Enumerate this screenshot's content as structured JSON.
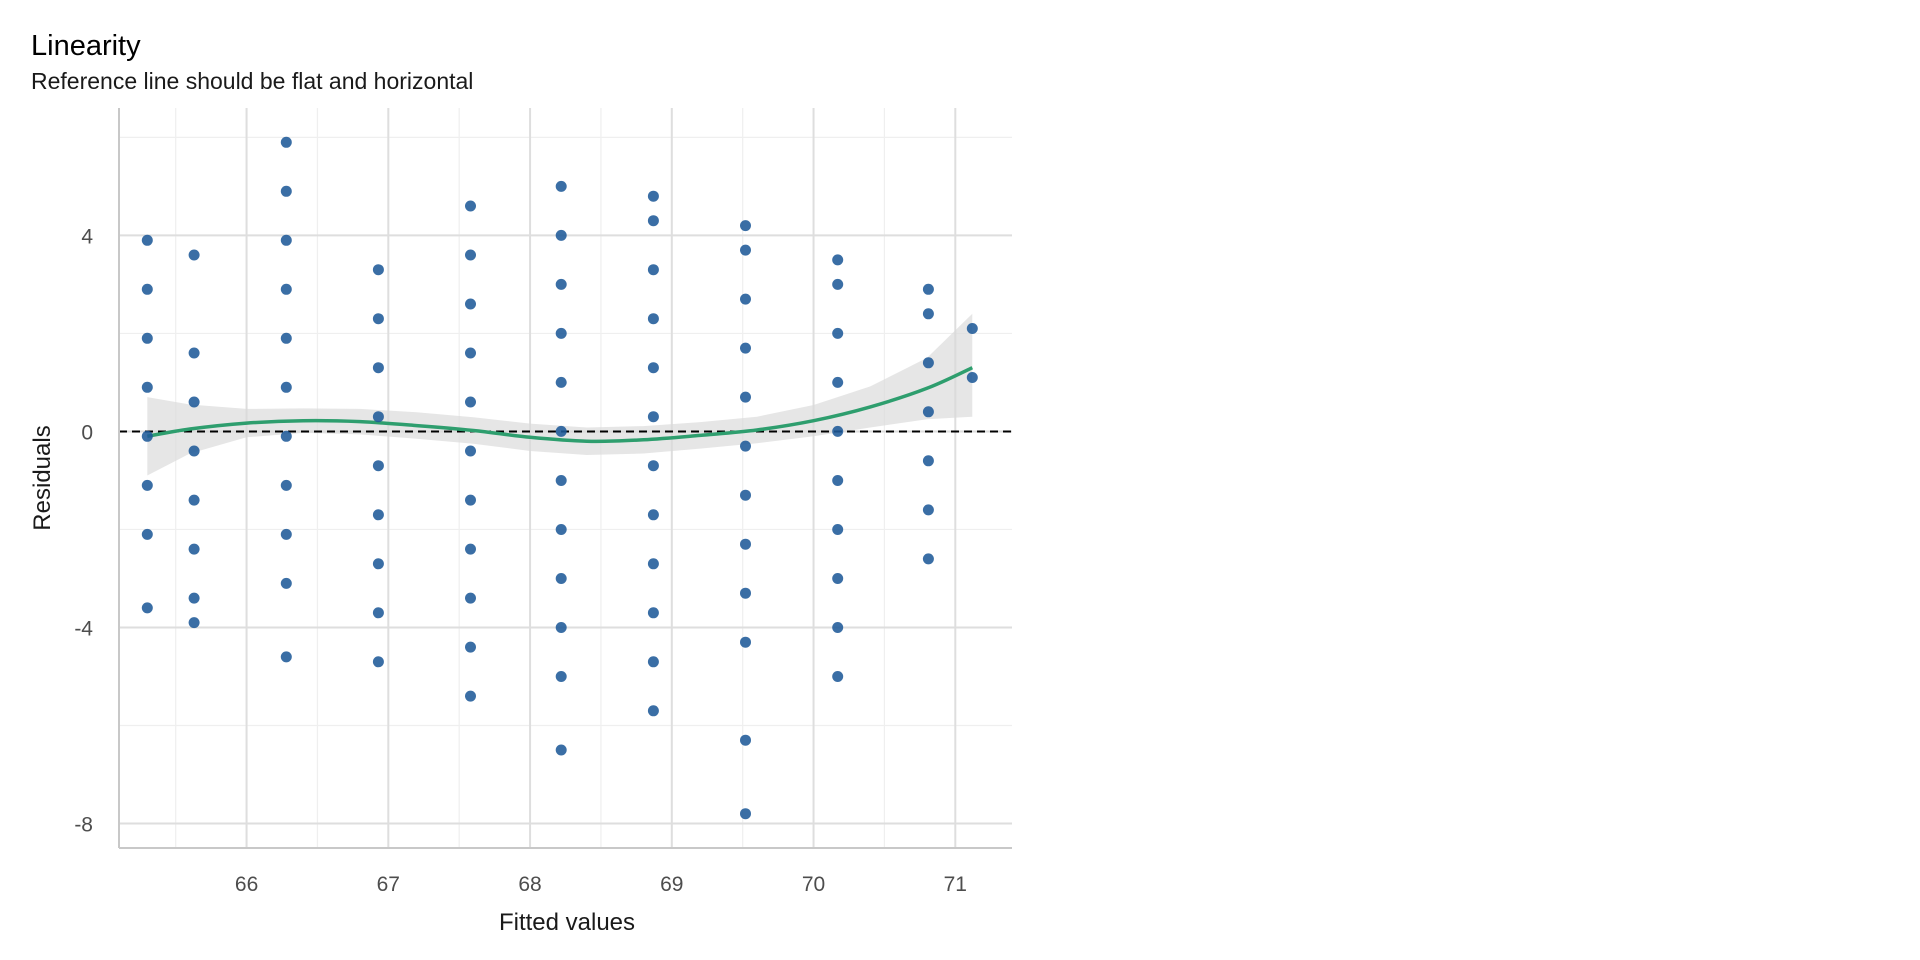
{
  "chart_data": {
    "type": "scatter",
    "title": "Linearity",
    "subtitle": "Reference line should be flat and horizontal",
    "xlabel": "Fitted values",
    "ylabel": "Residuals",
    "xlim": [
      65.1,
      71.4
    ],
    "ylim": [
      -8.5,
      6.6
    ],
    "x_ticks": [
      66,
      67,
      68,
      69,
      70,
      71
    ],
    "y_ticks": [
      -8,
      -4,
      0,
      4
    ],
    "grid": true,
    "reference_line_y": 0,
    "colors": {
      "points": "#1f5a99",
      "smooth": "#2e9e6e",
      "band": "#d9d9d9",
      "reference": "#000000",
      "grid_major": "#dedede",
      "grid_minor": "#efefef"
    },
    "groups": [
      {
        "x": 65.3,
        "y": [
          3.9,
          2.9,
          1.9,
          0.9,
          -0.1,
          -1.1,
          -2.1,
          -3.6
        ]
      },
      {
        "x": 65.63,
        "y": [
          3.6,
          1.6,
          0.6,
          -0.4,
          -1.4,
          -2.4,
          -3.4,
          -3.9
        ]
      },
      {
        "x": 66.28,
        "y": [
          5.9,
          4.9,
          3.9,
          2.9,
          1.9,
          0.9,
          -0.1,
          -1.1,
          -2.1,
          -3.1,
          -4.6
        ]
      },
      {
        "x": 66.93,
        "y": [
          3.3,
          2.3,
          1.3,
          0.3,
          -0.7,
          -1.7,
          -2.7,
          -3.7,
          -4.7
        ]
      },
      {
        "x": 67.58,
        "y": [
          4.6,
          3.6,
          2.6,
          1.6,
          0.6,
          -0.4,
          -1.4,
          -2.4,
          -3.4,
          -4.4,
          -5.4
        ]
      },
      {
        "x": 68.22,
        "y": [
          5.0,
          4.0,
          3.0,
          2.0,
          1.0,
          0.0,
          -1.0,
          -2.0,
          -3.0,
          -4.0,
          -5.0,
          -6.5
        ]
      },
      {
        "x": 68.87,
        "y": [
          4.8,
          4.3,
          3.3,
          2.3,
          1.3,
          0.3,
          -0.7,
          -1.7,
          -2.7,
          -3.7,
          -4.7,
          -5.7
        ]
      },
      {
        "x": 69.52,
        "y": [
          4.2,
          3.7,
          2.7,
          1.7,
          0.7,
          -0.3,
          -1.3,
          -2.3,
          -3.3,
          -4.3,
          -6.3,
          -7.8
        ]
      },
      {
        "x": 70.17,
        "y": [
          3.5,
          3.0,
          2.0,
          1.0,
          0.0,
          -1.0,
          -2.0,
          -3.0,
          -4.0,
          -5.0
        ]
      },
      {
        "x": 70.81,
        "y": [
          2.9,
          2.4,
          1.4,
          0.4,
          -0.6,
          -1.6,
          -2.6
        ]
      },
      {
        "x": 71.12,
        "y": [
          2.1,
          1.1
        ]
      }
    ],
    "smooth": {
      "x": [
        65.3,
        65.6,
        66.0,
        66.4,
        66.8,
        67.2,
        67.6,
        68.0,
        68.4,
        68.8,
        69.2,
        69.6,
        70.0,
        70.4,
        70.8,
        71.12
      ],
      "y": [
        -0.1,
        0.05,
        0.17,
        0.22,
        0.2,
        0.12,
        0.02,
        -0.12,
        -0.2,
        -0.17,
        -0.08,
        0.03,
        0.22,
        0.5,
        0.88,
        1.3
      ],
      "lower": [
        -0.9,
        -0.45,
        -0.12,
        -0.03,
        -0.06,
        -0.15,
        -0.25,
        -0.4,
        -0.48,
        -0.45,
        -0.35,
        -0.24,
        -0.1,
        0.08,
        0.25,
        0.3
      ],
      "upper": [
        0.7,
        0.55,
        0.46,
        0.47,
        0.46,
        0.39,
        0.29,
        0.16,
        0.08,
        0.11,
        0.19,
        0.3,
        0.54,
        0.92,
        1.5,
        2.4
      ]
    }
  }
}
